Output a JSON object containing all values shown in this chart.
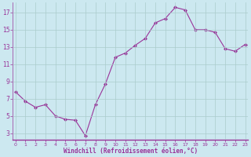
{
  "x": [
    0,
    1,
    2,
    3,
    4,
    5,
    6,
    7,
    8,
    9,
    10,
    11,
    12,
    13,
    14,
    15,
    16,
    17,
    18,
    19,
    20,
    21,
    22,
    23
  ],
  "y": [
    7.8,
    6.7,
    6.0,
    6.3,
    5.0,
    4.6,
    4.5,
    2.7,
    6.3,
    8.7,
    11.8,
    12.3,
    13.2,
    14.0,
    15.8,
    16.3,
    17.6,
    17.3,
    15.0,
    15.0,
    14.7,
    12.8,
    12.5,
    13.3
  ],
  "line_color": "#993399",
  "marker": "D",
  "marker_size": 2.0,
  "bg_color": "#cce8f0",
  "grid_color": "#aacccc",
  "xlabel": "Windchill (Refroidissement éolien,°C)",
  "xlabel_color": "#993399",
  "tick_color": "#993399",
  "yticks": [
    3,
    5,
    7,
    9,
    11,
    13,
    15,
    17
  ],
  "xticks": [
    0,
    1,
    2,
    3,
    4,
    5,
    6,
    7,
    8,
    9,
    10,
    11,
    12,
    13,
    14,
    15,
    16,
    17,
    18,
    19,
    20,
    21,
    22,
    23
  ],
  "xlim": [
    -0.3,
    23.3
  ],
  "ylim": [
    2.2,
    18.2
  ]
}
